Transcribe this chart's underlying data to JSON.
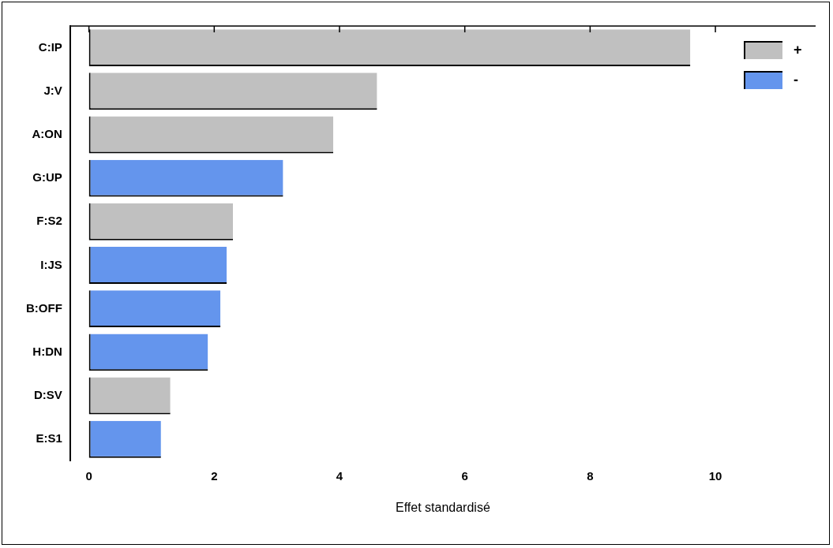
{
  "chart_data": {
    "type": "bar",
    "orientation": "horizontal",
    "xlabel": "Effet standardisé",
    "categories": [
      "C:IP",
      "J:V",
      "A:ON",
      "G:UP",
      "F:S2",
      "I:JS",
      "B:OFF",
      "H:DN",
      "D:SV",
      "E:S1"
    ],
    "series": [
      {
        "name": "+",
        "color": "#c0c0c0",
        "values": [
          9.6,
          4.6,
          3.9,
          null,
          2.3,
          null,
          null,
          null,
          1.3,
          null
        ]
      },
      {
        "name": "-",
        "color": "#6495ed",
        "values": [
          null,
          null,
          null,
          3.1,
          null,
          2.2,
          2.1,
          1.9,
          null,
          1.15
        ]
      }
    ],
    "xlim": [
      -0.3,
      11.6
    ],
    "xticks": [
      0,
      2,
      4,
      6,
      8,
      10
    ],
    "grid": false,
    "legend": "top right"
  }
}
